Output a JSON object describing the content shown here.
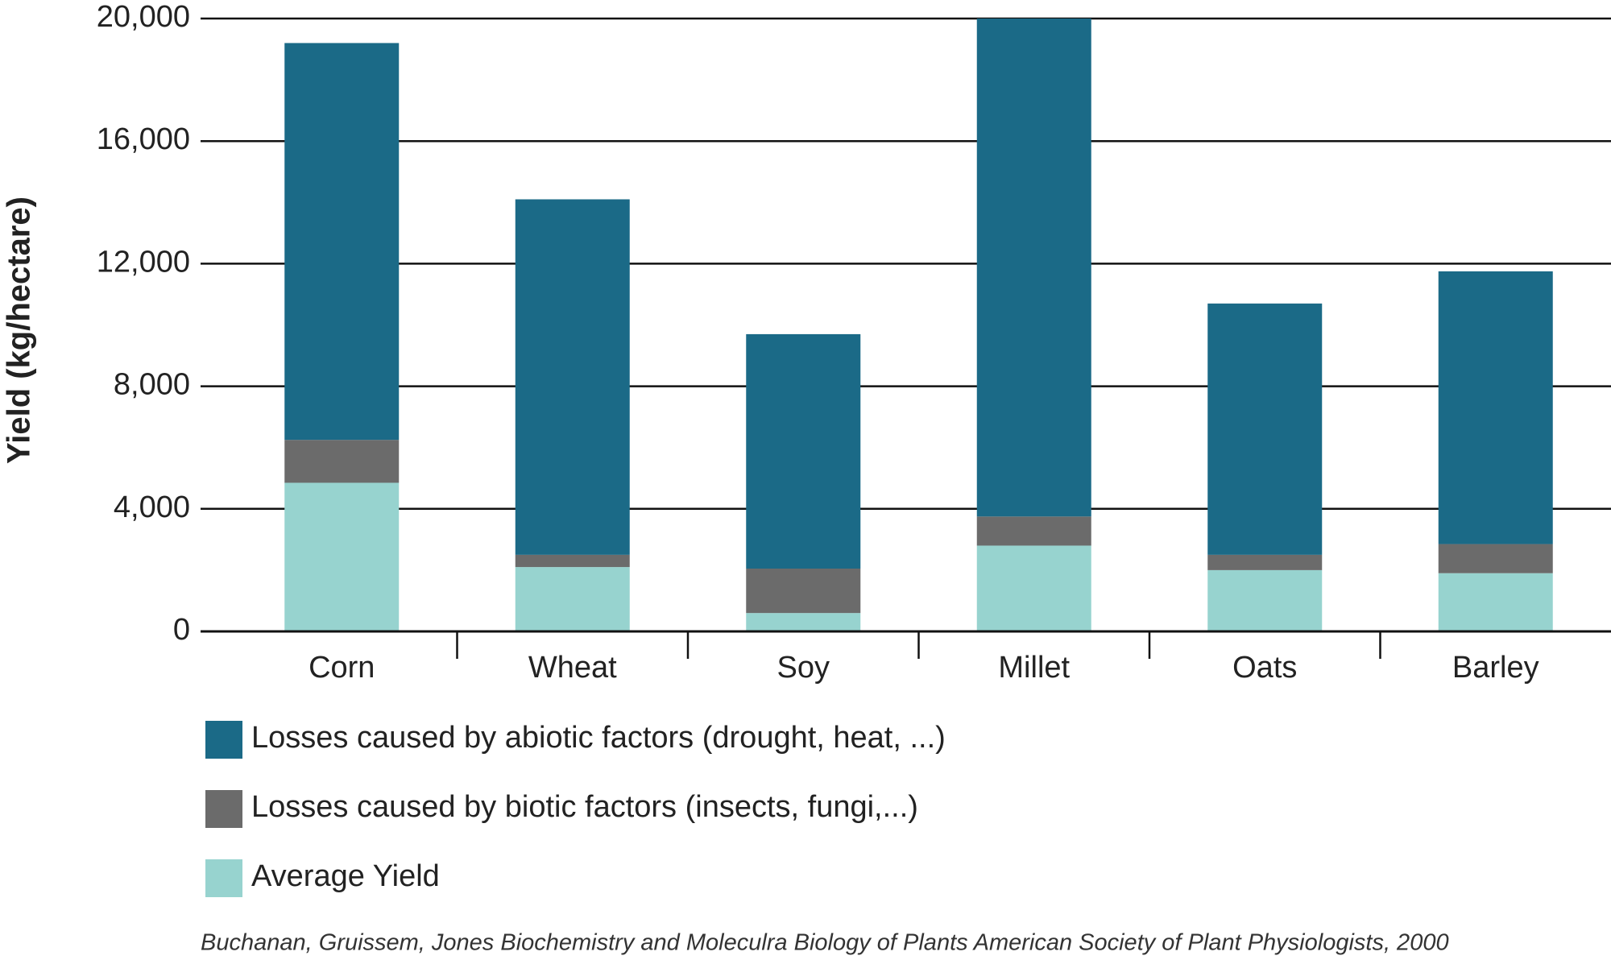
{
  "chart_data": {
    "type": "stacked_bar",
    "y_label": "Yield (kg/hectare)",
    "categories": [
      "Corn",
      "Wheat",
      "Soy",
      "Millet",
      "Oats",
      "Barley"
    ],
    "series": [
      {
        "name": "Losses caused by abiotic factors (drought, heat, ...)",
        "color": "#1b6a87",
        "values": [
          12950,
          11600,
          7650,
          16250,
          8200,
          8900
        ]
      },
      {
        "name": "Losses caused by biotic factors (insects, fungi,...)",
        "color": "#6b6b6b",
        "values": [
          1400,
          400,
          1450,
          950,
          500,
          950
        ]
      },
      {
        "name": "Average Yield",
        "color": "#97d3cf",
        "values": [
          4850,
          2100,
          600,
          2800,
          2000,
          1900
        ]
      }
    ],
    "ylim": [
      0,
      20000
    ],
    "yticks": [
      0,
      {
        "value": 4000,
        "label": "4,000"
      },
      {
        "value": 8000,
        "label": "8,000"
      },
      {
        "value": 12000,
        "label": "12,000"
      },
      {
        "value": 16000,
        "label": "16,000"
      },
      {
        "value": 20000,
        "label": "20,000"
      }
    ],
    "grid": true,
    "source": "Buchanan, Gruissem, Jones Biochemistry and Moleculra Biology of Plants American Society of Plant Physiologists, 2000"
  }
}
